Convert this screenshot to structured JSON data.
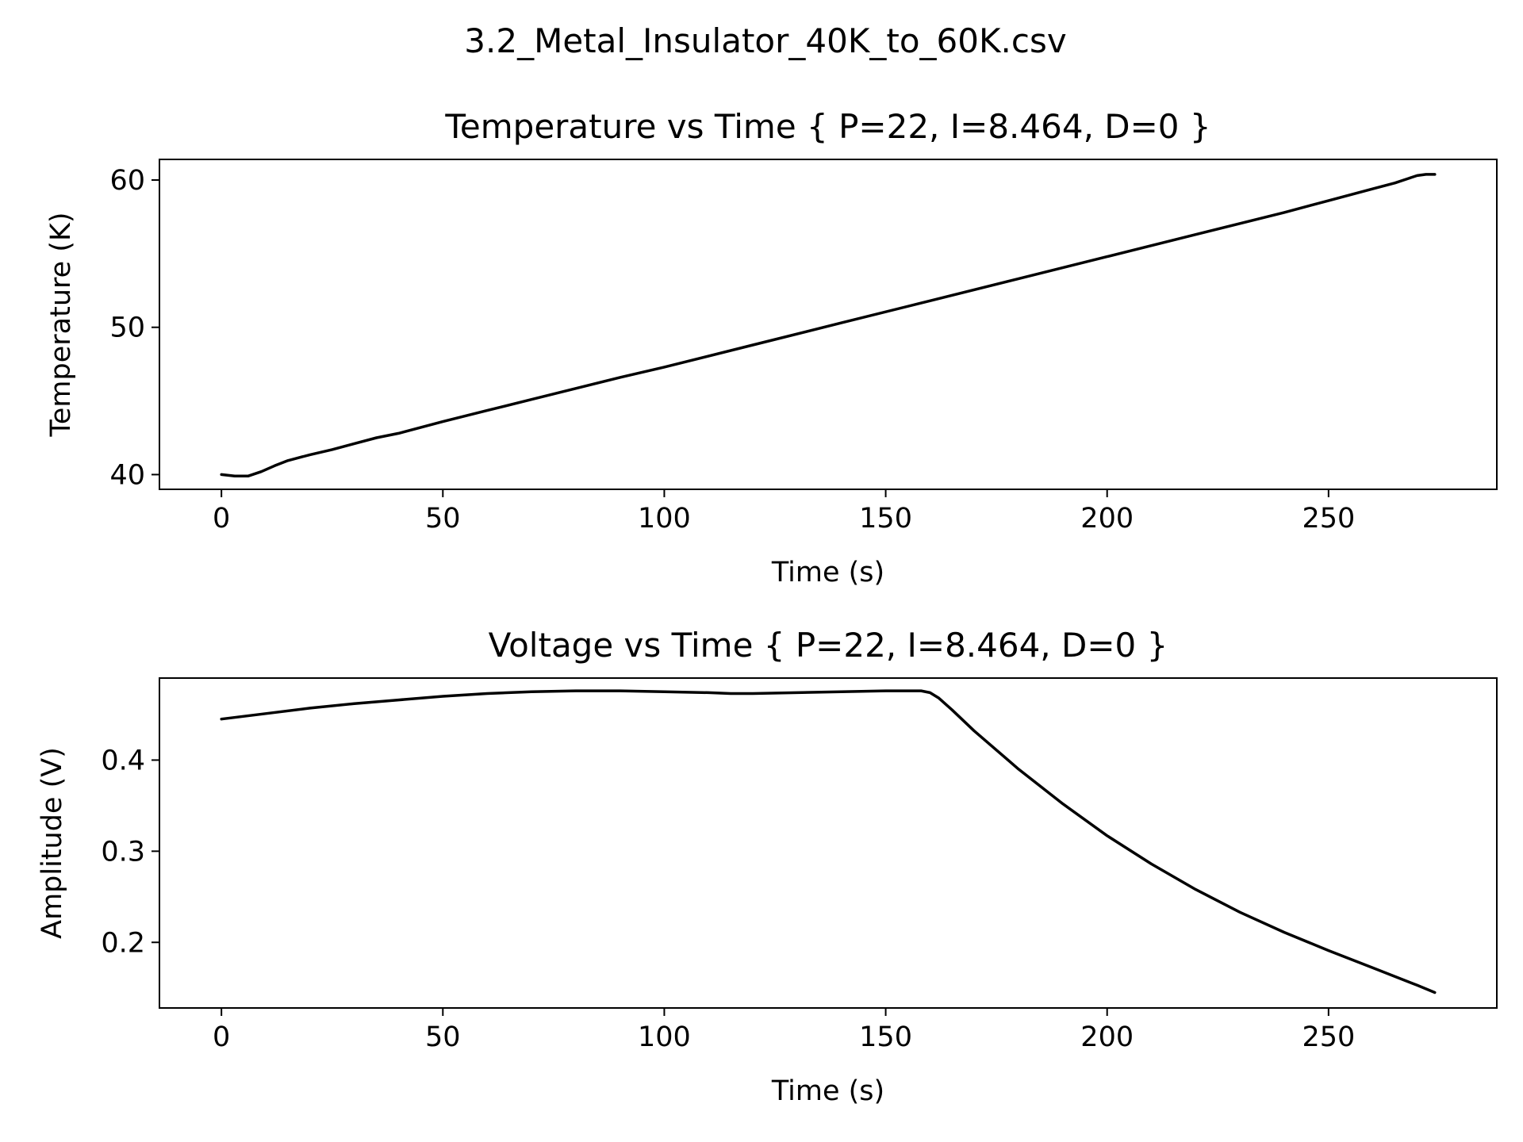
{
  "figure": {
    "suptitle": "3.2_Metal_Insulator_40K_to_60K.csv",
    "line_color": "#000000"
  },
  "chart_data": [
    {
      "type": "line",
      "title": "Temperature vs Time { P=22, I=8.464, D=0 }",
      "xlabel": "Time (s)",
      "ylabel": "Temperature (K)",
      "xlim": [
        -14,
        288
      ],
      "ylim": [
        39,
        61.4
      ],
      "xticks": [
        0,
        50,
        100,
        150,
        200,
        250
      ],
      "yticks": [
        40,
        50,
        60
      ],
      "grid": false,
      "series": [
        {
          "x": [
            0,
            3,
            6,
            9,
            12,
            15,
            20,
            25,
            30,
            35,
            40,
            50,
            60,
            70,
            80,
            90,
            100,
            120,
            140,
            160,
            180,
            200,
            220,
            240,
            260,
            265,
            268,
            270,
            272,
            274
          ],
          "y": [
            40.0,
            39.9,
            39.9,
            40.2,
            40.6,
            40.95,
            41.35,
            41.7,
            42.1,
            42.5,
            42.8,
            43.6,
            44.35,
            45.1,
            45.85,
            46.6,
            47.3,
            48.8,
            50.3,
            51.8,
            53.3,
            54.8,
            56.3,
            57.8,
            59.4,
            59.8,
            60.1,
            60.3,
            60.38,
            60.38
          ]
        }
      ]
    },
    {
      "type": "line",
      "title": "Voltage vs Time { P=22, I=8.464, D=0 }",
      "xlabel": "Time (s)",
      "ylabel": "Amplitude (V)",
      "xlim": [
        -14,
        288
      ],
      "ylim": [
        0.128,
        0.49
      ],
      "xticks": [
        0,
        50,
        100,
        150,
        200,
        250
      ],
      "yticks": [
        0.2,
        0.3,
        0.4
      ],
      "ytick_labels": [
        "0.2",
        "0.3",
        "0.4"
      ],
      "grid": false,
      "series": [
        {
          "x": [
            0,
            10,
            20,
            30,
            40,
            50,
            60,
            70,
            80,
            90,
            100,
            110,
            115,
            120,
            130,
            140,
            150,
            155,
            158,
            160,
            162,
            165,
            170,
            180,
            190,
            200,
            210,
            220,
            230,
            240,
            250,
            260,
            270,
            274
          ],
          "y": [
            0.445,
            0.451,
            0.457,
            0.462,
            0.466,
            0.47,
            0.473,
            0.475,
            0.476,
            0.476,
            0.475,
            0.474,
            0.473,
            0.473,
            0.474,
            0.475,
            0.476,
            0.476,
            0.476,
            0.474,
            0.468,
            0.455,
            0.432,
            0.39,
            0.352,
            0.317,
            0.286,
            0.258,
            0.233,
            0.211,
            0.191,
            0.172,
            0.153,
            0.145
          ]
        }
      ]
    }
  ]
}
